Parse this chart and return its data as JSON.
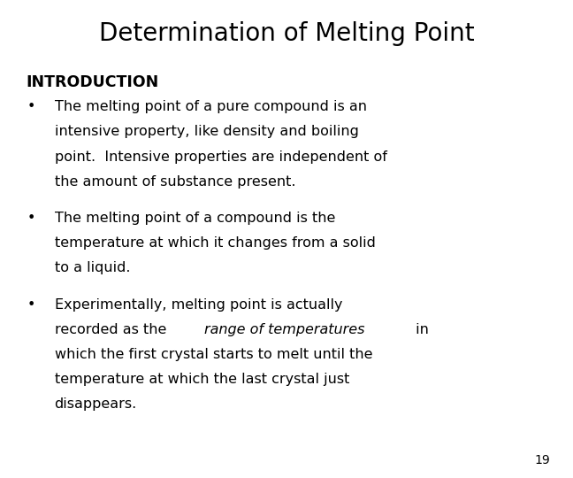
{
  "title": "Determination of Melting Point",
  "title_fontsize": 20,
  "background_color": "#ffffff",
  "text_color": "#000000",
  "section_header": "INTRODUCTION",
  "section_header_fontsize": 12.5,
  "bullet_fontsize": 11.5,
  "bullet1_lines": [
    "The melting point of a pure compound is an",
    "intensive property, like density and boiling",
    "point.  Intensive properties are independent of",
    "the amount of substance present."
  ],
  "bullet2_lines": [
    "The melting point of a compound is the",
    "temperature at which it changes from a solid",
    "to a liquid."
  ],
  "bullet3_line1": "Experimentally, melting point is actually",
  "bullet3_line2_normal1": "recorded as the ",
  "bullet3_line2_italic": "range of temperatures",
  "bullet3_line2_normal2": " in",
  "bullet3_line3": "which the first crystal starts to melt until the",
  "bullet3_line4": "temperature at which the last crystal just",
  "bullet3_line5": "disappears.",
  "page_number": "19",
  "page_number_fontsize": 10
}
